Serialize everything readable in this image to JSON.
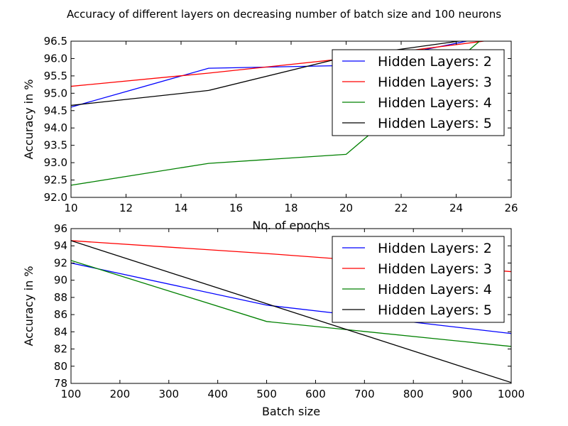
{
  "figure": {
    "title": "Accuracy of different layers on decreasing number of batch size and 100 neurons"
  },
  "chart_data": [
    {
      "type": "line",
      "xlabel": "No. of epochs",
      "ylabel": "Accuracy in %",
      "xlim": [
        10,
        26
      ],
      "ylim": [
        92.0,
        96.5
      ],
      "x_ticks": [
        10,
        12,
        14,
        16,
        18,
        20,
        22,
        24,
        26
      ],
      "y_ticks": [
        92.0,
        92.5,
        93.0,
        93.5,
        94.0,
        94.5,
        95.0,
        95.5,
        96.0,
        96.5
      ],
      "y_tick_decimals": 1,
      "legend_position": "upper-right",
      "series": [
        {
          "name": "Hidden Layers: 2",
          "color": "#0000ff",
          "x": [
            10,
            15,
            20,
            25
          ],
          "y": [
            94.6,
            95.72,
            95.8,
            96.6
          ]
        },
        {
          "name": "Hidden Layers: 3",
          "color": "#ff0000",
          "x": [
            10,
            15,
            20,
            25
          ],
          "y": [
            95.2,
            95.58,
            96.0,
            96.5
          ]
        },
        {
          "name": "Hidden Layers: 4",
          "color": "#008000",
          "x": [
            10,
            15,
            20,
            25
          ],
          "y": [
            92.35,
            92.98,
            93.24,
            96.6
          ]
        },
        {
          "name": "Hidden Layers: 5",
          "color": "#000000",
          "x": [
            10,
            15,
            20,
            25
          ],
          "y": [
            94.65,
            95.08,
            96.05,
            96.6
          ]
        }
      ]
    },
    {
      "type": "line",
      "xlabel": "Batch size",
      "ylabel": "Accuracy in %",
      "xlim": [
        100,
        1000
      ],
      "ylim": [
        78,
        96
      ],
      "x_ticks": [
        100,
        200,
        300,
        400,
        500,
        600,
        700,
        800,
        900,
        1000
      ],
      "y_ticks": [
        78,
        80,
        82,
        84,
        86,
        88,
        90,
        92,
        94,
        96
      ],
      "y_tick_decimals": 0,
      "legend_position": "upper-right",
      "series": [
        {
          "name": "Hidden Layers: 2",
          "color": "#0000ff",
          "x": [
            100,
            500,
            1000
          ],
          "y": [
            92.0,
            87.1,
            83.8
          ]
        },
        {
          "name": "Hidden Layers: 3",
          "color": "#ff0000",
          "x": [
            100,
            500,
            1000
          ],
          "y": [
            94.6,
            93.1,
            91.0
          ]
        },
        {
          "name": "Hidden Layers: 4",
          "color": "#008000",
          "x": [
            100,
            500,
            1000
          ],
          "y": [
            92.3,
            85.2,
            82.3
          ]
        },
        {
          "name": "Hidden Layers: 5",
          "color": "#000000",
          "x": [
            100,
            1000
          ],
          "y": [
            94.6,
            78.1
          ]
        }
      ]
    }
  ]
}
